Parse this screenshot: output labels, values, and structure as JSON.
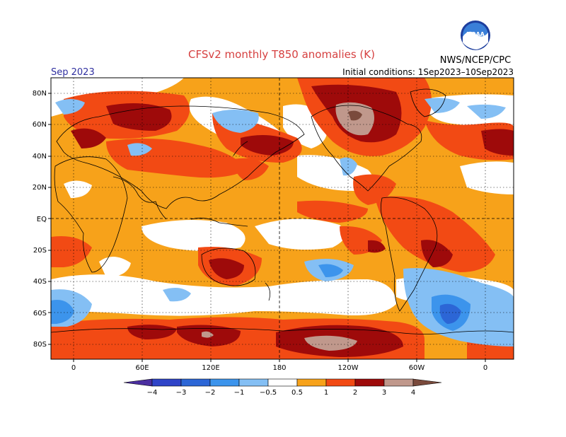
{
  "header": {
    "title": "CFSv2 monthly T850 anomalies (K)",
    "month": "Sep 2023",
    "initial_conditions": "Initial conditions: 1Sep2023–10Sep2023",
    "org": "NWS/NCEP/CPC",
    "logo_text": "NOAA"
  },
  "axes": {
    "lat_labels": [
      "80N",
      "60N",
      "40N",
      "20N",
      "EQ",
      "20S",
      "40S",
      "60S",
      "80S"
    ],
    "lon_labels": [
      "0",
      "60E",
      "120E",
      "180",
      "120W",
      "60W",
      "0"
    ]
  },
  "colorbar": {
    "labels": [
      "−4",
      "−3",
      "−2",
      "−1",
      "−0.5",
      "0.5",
      "1",
      "2",
      "3",
      "4"
    ],
    "colors": {
      "lt_neg4": "#4a2ea0",
      "neg4_neg3": "#2f44c8",
      "neg3_neg2": "#2c66d6",
      "neg2_neg1": "#3c94ec",
      "neg1_neg05": "#84bff4",
      "neutral": "#ffffff",
      "p05_1": "#f7a21a",
      "p1_2": "#f24a14",
      "p2_3": "#9e0a0a",
      "p3_4": "#c0988c",
      "gt4": "#7a4a3c"
    }
  }
}
